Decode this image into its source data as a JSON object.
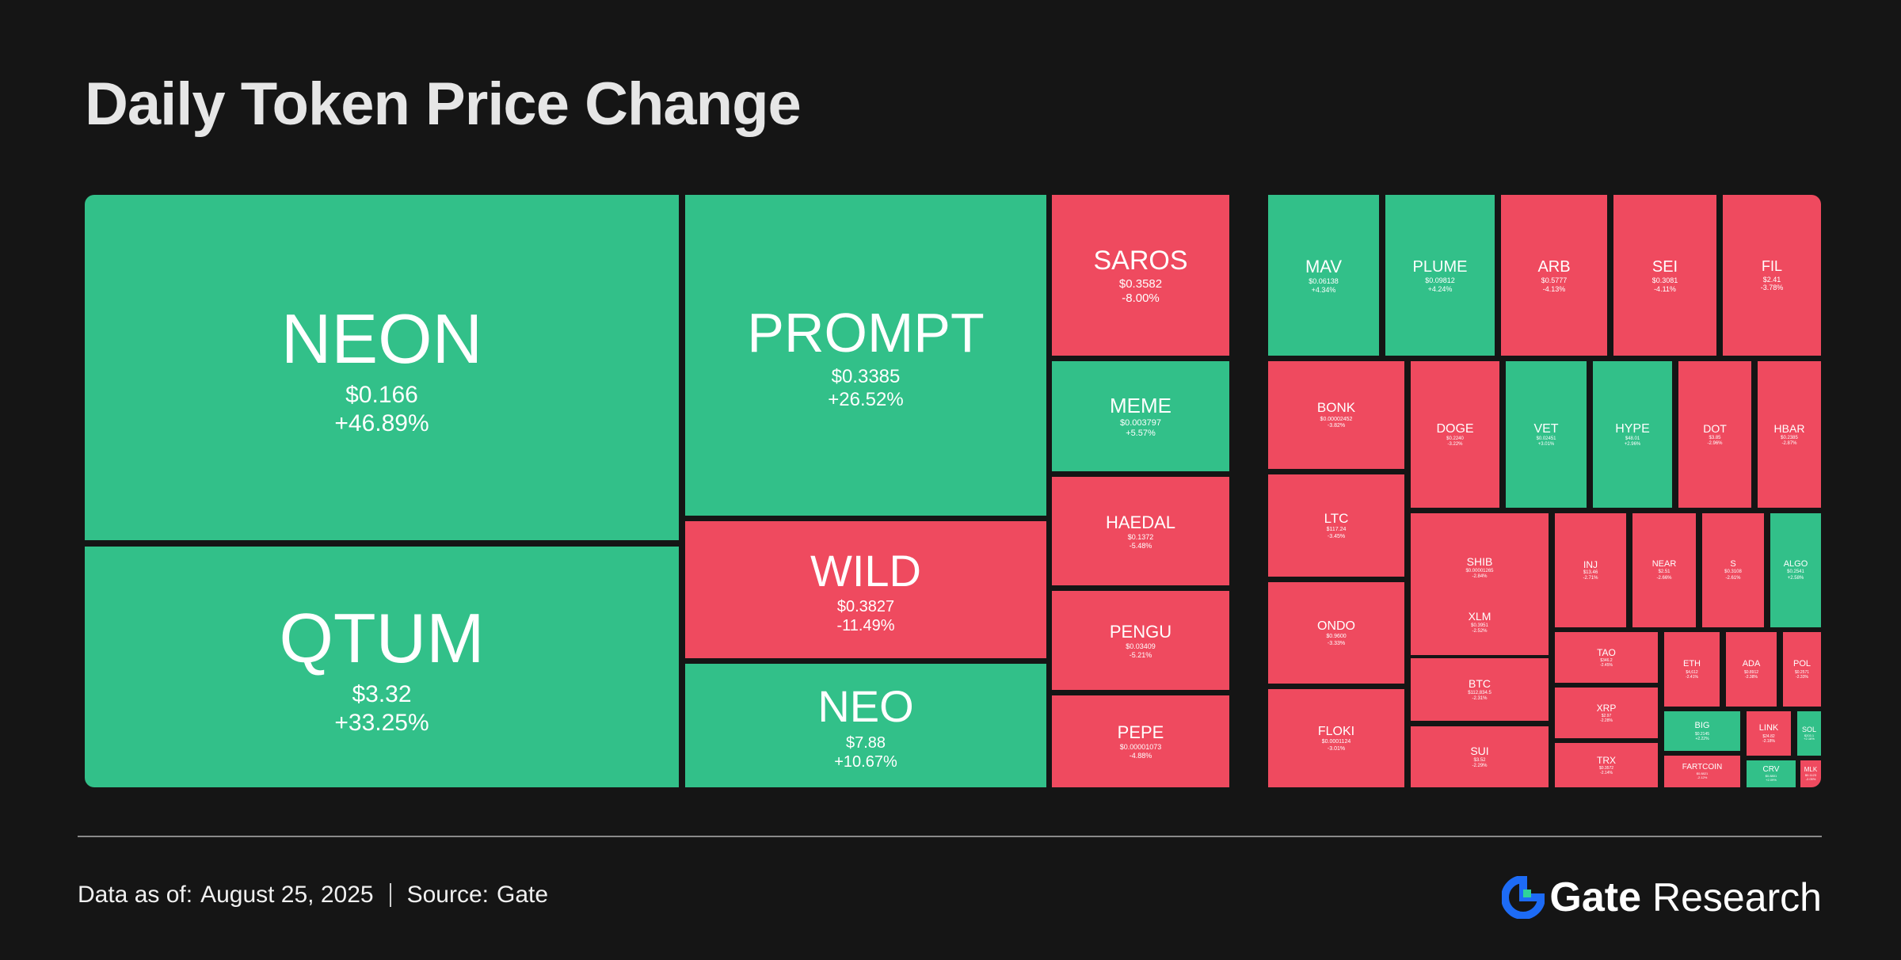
{
  "title": "Daily Token Price Change",
  "footer": {
    "data_label": "Data as of:",
    "date": "August  25, 2025",
    "source_label": "Source:",
    "source": "Gate"
  },
  "brand": {
    "name": "Gate",
    "suffix": "Research",
    "icon": "gate-logo-icon",
    "accent": "#1d6bf5"
  },
  "colors": {
    "up": "#32c089",
    "down": "#ef4a5f",
    "background": "#151515"
  },
  "chart_data": {
    "type": "treemap",
    "title": "Daily Token Price Change",
    "tiles": [
      {
        "symbol": "NEON",
        "price": "$0.166",
        "change": "+46.89%",
        "change_value": 46.89
      },
      {
        "symbol": "QTUM",
        "price": "$3.32",
        "change": "+33.25%",
        "change_value": 33.25
      },
      {
        "symbol": "PROMPT",
        "price": "$0.3385",
        "change": "+26.52%",
        "change_value": 26.52
      },
      {
        "symbol": "WILD",
        "price": "$0.3827",
        "change": "-11.49%",
        "change_value": -11.49
      },
      {
        "symbol": "NEO",
        "price": "$7.88",
        "change": "+10.67%",
        "change_value": 10.67
      },
      {
        "symbol": "SAROS",
        "price": "$0.3582",
        "change": "-8.00%",
        "change_value": -8.0
      },
      {
        "symbol": "MAV",
        "price": "$0.06138",
        "change": "+4.34%",
        "change_value": 4.34
      },
      {
        "symbol": "PLUME",
        "price": "$0.09812",
        "change": "+4.24%",
        "change_value": 4.24
      },
      {
        "symbol": "ARB",
        "price": "$0.5777",
        "change": "-4.13%",
        "change_value": -4.13
      },
      {
        "symbol": "SEI",
        "price": "$0.3081",
        "change": "-4.11%",
        "change_value": -4.11
      },
      {
        "symbol": "FIL",
        "price": "$2.41",
        "change": "-3.78%",
        "change_value": -3.78
      },
      {
        "symbol": "MEME",
        "price": "$0.003797",
        "change": "+5.57%",
        "change_value": 5.57
      },
      {
        "symbol": "BONK",
        "price": "$0.00002452",
        "change": "-3.82%",
        "change_value": -3.82
      },
      {
        "symbol": "DOGE",
        "price": "$0.2240",
        "change": "-3.22%",
        "change_value": -3.22
      },
      {
        "symbol": "VET",
        "price": "$0.02451",
        "change": "+3.01%",
        "change_value": 3.01
      },
      {
        "symbol": "HYPE",
        "price": "$48.01",
        "change": "+2.96%",
        "change_value": 2.96
      },
      {
        "symbol": "DOT",
        "price": "$3.85",
        "change": "-2.96%",
        "change_value": -2.96
      },
      {
        "symbol": "HBAR",
        "price": "$0.2385",
        "change": "-2.87%",
        "change_value": -2.87
      },
      {
        "symbol": "HAEDAL",
        "price": "$0.1372",
        "change": "-5.48%",
        "change_value": -5.48
      },
      {
        "symbol": "LTC",
        "price": "$117.24",
        "change": "-3.45%",
        "change_value": -3.45
      },
      {
        "symbol": "SHIB",
        "price": "$0.00001265",
        "change": "-2.84%",
        "change_value": -2.84
      },
      {
        "symbol": "INJ",
        "price": "$13.46",
        "change": "-2.71%",
        "change_value": -2.71
      },
      {
        "symbol": "NEAR",
        "price": "$2.51",
        "change": "-2.66%",
        "change_value": -2.66
      },
      {
        "symbol": "S",
        "price": "$0.3108",
        "change": "-2.61%",
        "change_value": -2.61
      },
      {
        "symbol": "ALGO",
        "price": "$0.2541",
        "change": "+2.58%",
        "change_value": 2.58
      },
      {
        "symbol": "PENGU",
        "price": "$0.03409",
        "change": "-5.21%",
        "change_value": -5.21
      },
      {
        "symbol": "ONDO",
        "price": "$0.9600",
        "change": "-3.33%",
        "change_value": -3.33
      },
      {
        "symbol": "XLM",
        "price": "$0.3951",
        "change": "-2.52%",
        "change_value": -2.52
      },
      {
        "symbol": "TAO",
        "price": "$346.2",
        "change": "-2.45%",
        "change_value": -2.45
      },
      {
        "symbol": "ETH",
        "price": "$4,612",
        "change": "-2.41%",
        "change_value": -2.41
      },
      {
        "symbol": "ADA",
        "price": "$0.8912",
        "change": "-2.38%",
        "change_value": -2.38
      },
      {
        "symbol": "POL",
        "price": "$0.2571",
        "change": "-2.33%",
        "change_value": -2.33
      },
      {
        "symbol": "BTC",
        "price": "$112,834.5",
        "change": "-2.31%",
        "change_value": -2.31
      },
      {
        "symbol": "XRP",
        "price": "$2.97",
        "change": "-2.28%",
        "change_value": -2.28
      },
      {
        "symbol": "BIG",
        "price": "$0.2145",
        "change": "+2.22%",
        "change_value": 2.22
      },
      {
        "symbol": "LINK",
        "price": "$24.82",
        "change": "-2.18%",
        "change_value": -2.18
      },
      {
        "symbol": "SOL",
        "price": "$203.1",
        "change": "+2.16%",
        "change_value": 2.16
      },
      {
        "symbol": "PEPE",
        "price": "$0.00001073",
        "change": "-4.88%",
        "change_value": -4.88
      },
      {
        "symbol": "FLOKI",
        "price": "$0.0001124",
        "change": "-3.01%",
        "change_value": -3.01
      },
      {
        "symbol": "SUI",
        "price": "$3.52",
        "change": "-2.29%",
        "change_value": -2.29
      },
      {
        "symbol": "TRX",
        "price": "$0.3572",
        "change": "-2.14%",
        "change_value": -2.14
      },
      {
        "symbol": "FARTCOIN",
        "price": "$0.8821",
        "change": "-2.12%",
        "change_value": -2.12
      },
      {
        "symbol": "CRV",
        "price": "$0.8801",
        "change": "+2.09%",
        "change_value": 2.09
      },
      {
        "symbol": "MLK",
        "price": "$0.1123",
        "change": "-2.05%",
        "change_value": -2.05
      }
    ]
  }
}
